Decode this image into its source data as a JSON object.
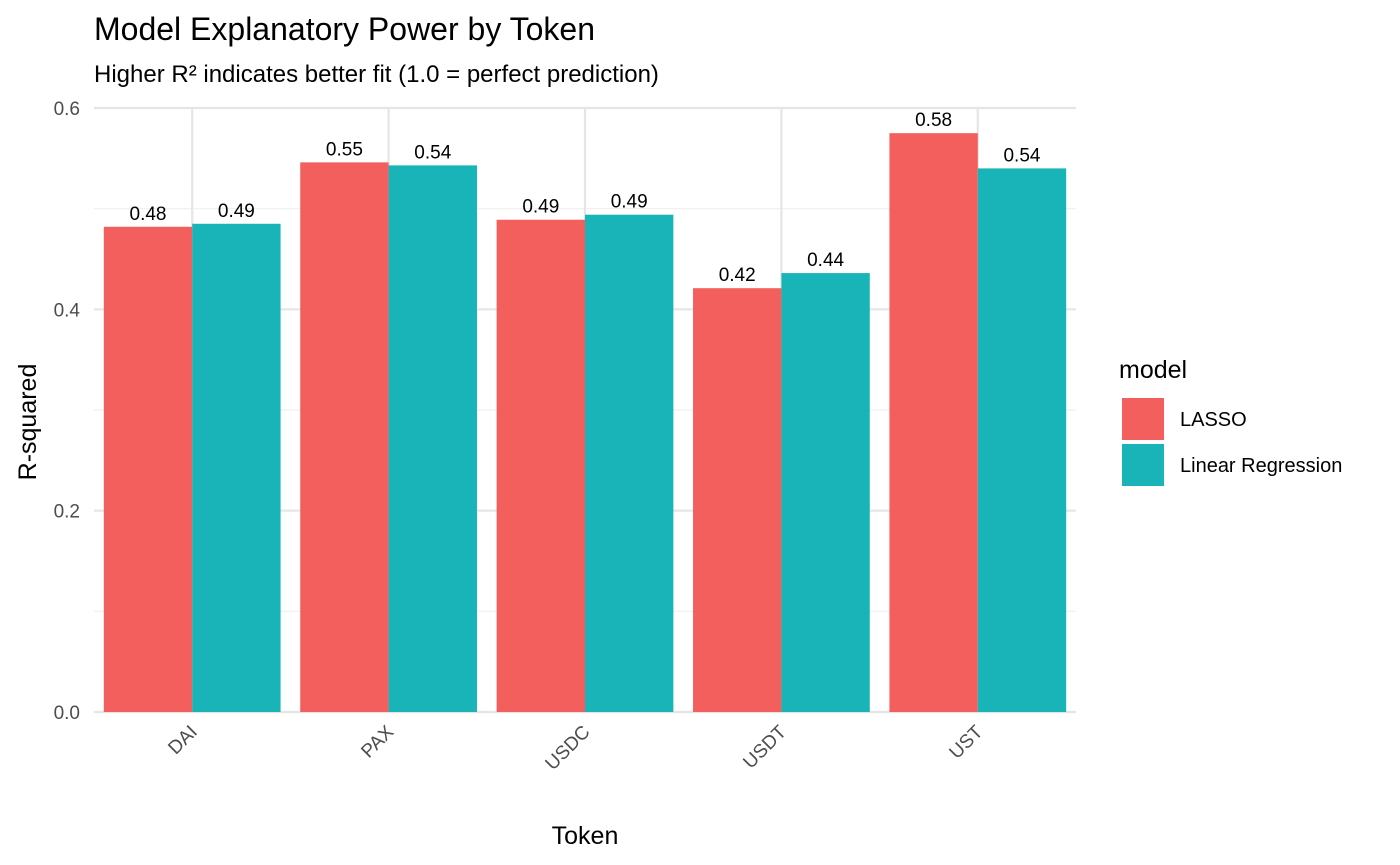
{
  "chart_data": {
    "type": "bar",
    "title": "Model Explanatory Power by Token",
    "subtitle": "Higher R² indicates better fit (1.0 = perfect prediction)",
    "xlabel": "Token",
    "ylabel": "R-squared",
    "categories": [
      "DAI",
      "PAX",
      "USDC",
      "USDT",
      "UST"
    ],
    "series": [
      {
        "name": "LASSO",
        "color": "#F8766D",
        "fill": "#f35f5c",
        "values": [
          0.482,
          0.546,
          0.489,
          0.421,
          0.575
        ],
        "labels": [
          "0.48",
          "0.55",
          "0.49",
          "0.42",
          "0.58"
        ]
      },
      {
        "name": "Linear Regression",
        "color": "#00BFC4",
        "fill": "#19b4b8",
        "values": [
          0.485,
          0.543,
          0.494,
          0.436,
          0.54
        ],
        "labels": [
          "0.49",
          "0.54",
          "0.49",
          "0.44",
          "0.54"
        ]
      }
    ],
    "ylim": [
      0,
      0.6
    ],
    "yticks": [
      0.0,
      0.2,
      0.4,
      0.6
    ],
    "ytick_labels": [
      "0.0",
      "0.2",
      "0.4",
      "0.6"
    ],
    "grid": true,
    "legend": {
      "title": "model",
      "position": "right"
    }
  }
}
